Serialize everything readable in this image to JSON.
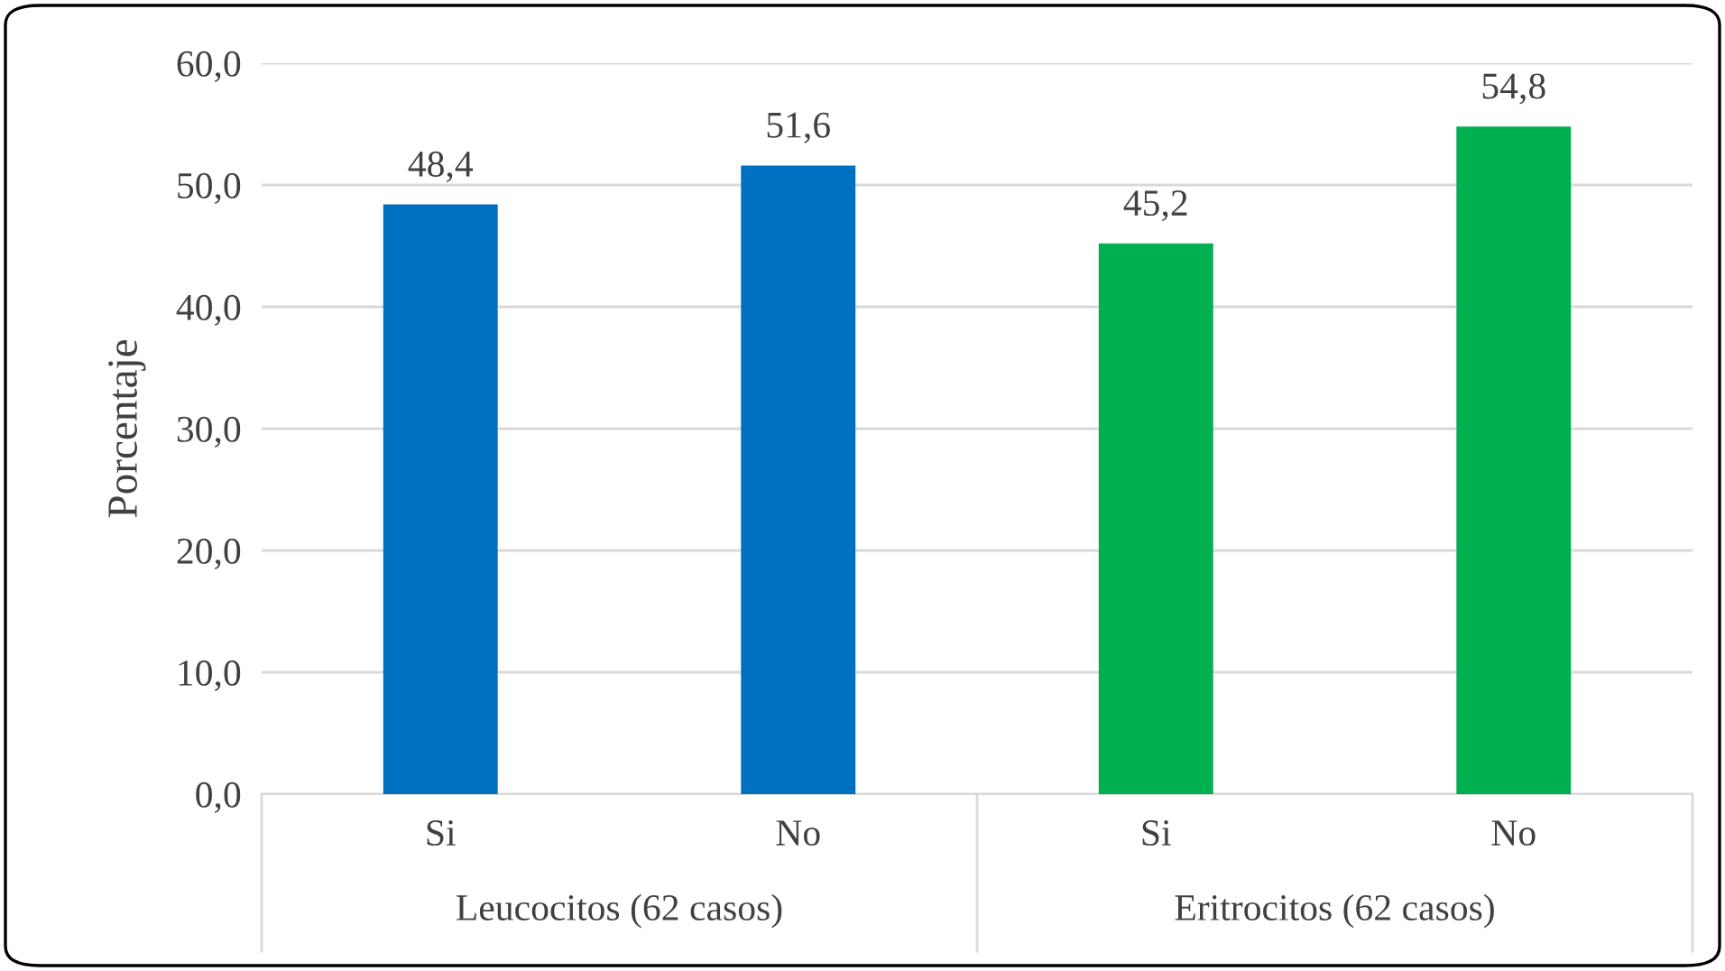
{
  "chart_data": {
    "type": "bar",
    "ylabel": "Porcentaje",
    "categories": [
      "Si",
      "No",
      "Si",
      "No"
    ],
    "values": [
      48.4,
      51.6,
      45.2,
      54.8
    ],
    "colors": [
      "#0070c0",
      "#0070c0",
      "#00b050",
      "#00b050"
    ],
    "value_labels": [
      "48,4",
      "51,6",
      "45,2",
      "54,8"
    ],
    "annotations": [
      "Leucocitos (62 casos)",
      "Eritrocitos (62 casos)"
    ],
    "ylim": [
      0,
      60
    ],
    "yticks": [
      {
        "value": 0,
        "label": "0,0"
      },
      {
        "value": 10,
        "label": "10,0"
      },
      {
        "value": 20,
        "label": "20,0"
      },
      {
        "value": 30,
        "label": "30,0"
      },
      {
        "value": 40,
        "label": "40,0"
      },
      {
        "value": 50,
        "label": "50,0"
      },
      {
        "value": 60,
        "label": "60,0"
      }
    ],
    "grid": "y",
    "legend": false
  }
}
